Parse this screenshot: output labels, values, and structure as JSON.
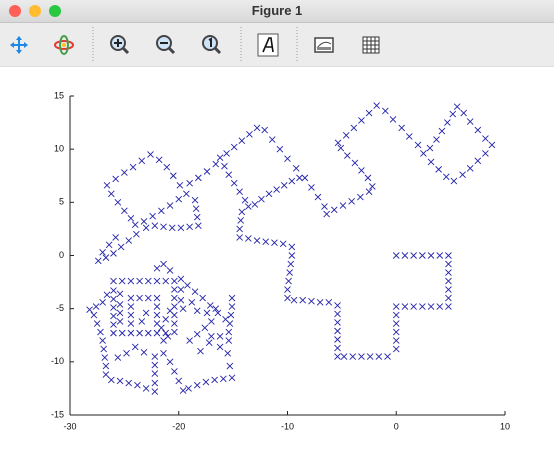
{
  "window": {
    "title": "Figure 1"
  },
  "chart_data": {
    "type": "scatter",
    "marker": "x",
    "series": [
      {
        "color": "#2222aa",
        "x": [
          0,
          0.8,
          1.6,
          2.4,
          3.2,
          4,
          4.8,
          4.8,
          4.8,
          4.8,
          4.8,
          4.8,
          4.8,
          4,
          3.2,
          2.4,
          1.6,
          0.8,
          0,
          0,
          0,
          0,
          0,
          0,
          -0.8,
          -1.6,
          -2.4,
          -3.2,
          -4,
          -4.8,
          -5.4,
          -5.4,
          -5.4,
          -5.4,
          -5.4,
          -5.4,
          -5.4,
          -6.2,
          -7,
          -7.8,
          -8.6,
          -9.4,
          -10,
          -10,
          -9.9,
          -9.8,
          -9.7,
          -9.6,
          -9.6,
          -10.4,
          -11.2,
          -12,
          -12.8,
          -13.6,
          -14.4,
          -14.4,
          -14.3,
          -14.2,
          -13.6,
          -13,
          -12.4,
          -11.7,
          -11,
          -10.3,
          -9.6,
          -8.9,
          -8.4,
          -7.8,
          -7.2,
          -6.6,
          -6.4,
          -5.7,
          -4.9,
          -4.1,
          -3.3,
          -2.5,
          -2.2,
          -2.6,
          -3.2,
          -3.8,
          -4.5,
          -5.1,
          -5.35,
          -4.6,
          -3.9,
          -3.2,
          -2.5,
          -1.8,
          -1,
          -0.3,
          0.5,
          1.2,
          2,
          2.5,
          3.1,
          3.7,
          4.2,
          4.7,
          5.2,
          5.6,
          6.2,
          6.8,
          7.5,
          8.2,
          8.8,
          8.2,
          7.5,
          6.8,
          6.1,
          5.3,
          4.6,
          3.9,
          3.2,
          -9.2,
          -10,
          -10.7,
          -11.4,
          -12.1,
          -12.8,
          -13.5,
          -14.2,
          -14.9,
          -15.6,
          -16.2,
          -15.8,
          -15.4,
          -14.9,
          -14.4,
          -13.9,
          -16.6,
          -17.4,
          -18.2,
          -19,
          -19.9,
          -20.5,
          -21.1,
          -21.8,
          -22.6,
          -23.4,
          -24.2,
          -25,
          -25.8,
          -26.6,
          -26.2,
          -25.6,
          -25,
          -24.4,
          -24,
          -23.2,
          -22.4,
          -21.6,
          -20.8,
          -20,
          -19.3,
          -18.5,
          -18.4,
          -18.3,
          -18.2,
          -19,
          -19.8,
          -20.6,
          -21.4,
          -22.2,
          -23,
          -23.9,
          -24.6,
          -25.3,
          -26,
          -26.7,
          -27.4,
          -27,
          -26.4,
          -25.8,
          -26,
          -25.2,
          -24.4,
          -23.6,
          -22.8,
          -22,
          -21.2,
          -20.4,
          -20.4,
          -20.4,
          -20.4,
          -20.4,
          -20.4,
          -20.4,
          -21.2,
          -22,
          -22.8,
          -23.6,
          -24.4,
          -25.2,
          -26,
          -26,
          -26,
          -26,
          -26,
          -26,
          -24.4,
          -24.4,
          -24.4,
          -24.4,
          -23.6,
          -22.8,
          -22,
          -22,
          -22,
          -22,
          -21.4,
          -21,
          -21.6,
          -21.2,
          -20.8,
          -20.8,
          -21.4,
          -22,
          -19.8,
          -19.2,
          -18.5,
          -17.8,
          -17.1,
          -16.4,
          -15.7,
          -17,
          -17.6,
          -18.3,
          -19,
          -16.2,
          -15.5,
          -15.3,
          -15.1,
          -15.9,
          -16.7,
          -17.5,
          -18.3,
          -19.1,
          -19.6,
          -20,
          -20.4,
          -20.8,
          -21.4,
          -22.2,
          -22.2,
          -22.2,
          -22.2,
          -22.2,
          -23,
          -23.8,
          -24.6,
          -25.4,
          -26.2,
          -26.7,
          -26.7,
          -26.8,
          -26.9,
          -27,
          -27.2,
          -27.5,
          -27.8,
          -28.2,
          -27.6,
          -27,
          -26.6,
          -24,
          -24.8,
          -25.6,
          -23.2,
          -17.2,
          -18,
          -17.4,
          -16.6,
          -15.1,
          -15.1,
          -15.2,
          -15.3,
          -15.4,
          -15.4,
          -16.2,
          -17,
          -19.8,
          -19.8,
          -19.6,
          -18.8,
          -18.3,
          -23,
          -23.4,
          -25.4,
          -25.4,
          -25.4,
          -25.4
        ],
        "values": [
          0,
          0,
          0,
          0,
          0,
          0,
          0,
          -0.8,
          -1.6,
          -2.4,
          -3.2,
          -4,
          -4.8,
          -4.8,
          -4.8,
          -4.8,
          -4.8,
          -4.8,
          -4.8,
          -5.6,
          -6.4,
          -7.2,
          -8,
          -8.8,
          -9.5,
          -9.5,
          -9.5,
          -9.5,
          -9.5,
          -9.5,
          -9.5,
          -8.7,
          -7.9,
          -7.1,
          -6.3,
          -5.5,
          -4.7,
          -4.4,
          -4.4,
          -4.3,
          -4.2,
          -4.2,
          -4,
          -3.2,
          -2.4,
          -1.6,
          -0.8,
          0,
          0.8,
          1.1,
          1.2,
          1.3,
          1.4,
          1.6,
          1.7,
          2.5,
          3.3,
          4.1,
          4.6,
          4.8,
          5.3,
          5.8,
          6.2,
          6.6,
          7,
          7.3,
          7.3,
          6.4,
          5.5,
          4.6,
          3.9,
          4.3,
          4.7,
          5.1,
          5.5,
          6,
          6.5,
          7.3,
          8,
          8.7,
          9.4,
          10.1,
          10.6,
          11.3,
          12,
          12.7,
          13.4,
          14.1,
          13.6,
          12.8,
          12,
          11.2,
          10.4,
          9.6,
          10.1,
          10.9,
          11.7,
          12.5,
          13.3,
          14,
          13.4,
          12.6,
          11.8,
          11,
          10.4,
          9.6,
          8.9,
          8.2,
          7.6,
          7,
          7.4,
          8.1,
          8.8,
          8.2,
          9.1,
          10,
          10.9,
          11.8,
          12,
          11.4,
          10.8,
          10.2,
          9.6,
          9.2,
          8.4,
          7.6,
          6.8,
          6,
          5.2,
          8.6,
          7.9,
          7.3,
          6.8,
          6.6,
          7.5,
          8.3,
          9,
          9.5,
          8.9,
          8.3,
          7.8,
          7.2,
          6.6,
          5.8,
          5,
          4.2,
          3.5,
          2.9,
          3.2,
          3.7,
          4.2,
          4.7,
          5.3,
          5.8,
          5.2,
          4.4,
          3.6,
          2.8,
          2.7,
          2.6,
          2.6,
          2.7,
          2.8,
          2.6,
          2,
          1.4,
          0.8,
          0.2,
          -0.2,
          -0.5,
          0.3,
          1,
          1.7,
          -2.4,
          -2.4,
          -2.4,
          -2.4,
          -2.4,
          -2.4,
          -2.4,
          -2.4,
          -3.2,
          -4,
          -4.8,
          -5.6,
          -6.4,
          -7.2,
          -7.3,
          -7.3,
          -7.3,
          -7.3,
          -7.3,
          -7.3,
          -7.3,
          -6.5,
          -5.7,
          -4.9,
          -4.1,
          -3.3,
          -4,
          -4.8,
          -5.6,
          -6.4,
          -4,
          -4,
          -4,
          -4.8,
          -5.6,
          -6.4,
          -8,
          -7.6,
          -6.8,
          -6,
          -5.2,
          -1.4,
          -0.8,
          -1.2,
          -2.2,
          -2.8,
          -3.4,
          -4,
          -4.7,
          -5.4,
          -6,
          -6.2,
          -6.8,
          -7.4,
          -8,
          -8.6,
          -9.2,
          -10.4,
          -11.5,
          -11.6,
          -11.7,
          -11.9,
          -12.2,
          -12.5,
          -12.7,
          -11.8,
          -10.9,
          -10,
          -9.2,
          -9.5,
          -10.3,
          -11.1,
          -12,
          -12.8,
          -12.5,
          -12.2,
          -12,
          -11.8,
          -11.7,
          -11.2,
          -10.4,
          -9.6,
          -8.8,
          -8,
          -7.2,
          -6.4,
          -5.6,
          -5.1,
          -4.8,
          -4.4,
          -3.7,
          -8.6,
          -9.2,
          -9.6,
          -9.1,
          -8.2,
          -9,
          -5.4,
          -5,
          -4,
          -4.8,
          -5.6,
          -6.4,
          -7.2,
          -8,
          -7.6,
          -7.6,
          -3.2,
          -4.2,
          -5,
          -4.4,
          -5.2,
          -5.4,
          -6.2,
          -3.6,
          -4.6,
          -5.4,
          -6.2
        ]
      }
    ],
    "xlim": [
      -30,
      10
    ],
    "xticks": [
      -30,
      -20,
      -10,
      0,
      10
    ],
    "ylim": [
      -15,
      15
    ],
    "yticks": [
      -15,
      -10,
      -5,
      0,
      5,
      10,
      15
    ]
  }
}
